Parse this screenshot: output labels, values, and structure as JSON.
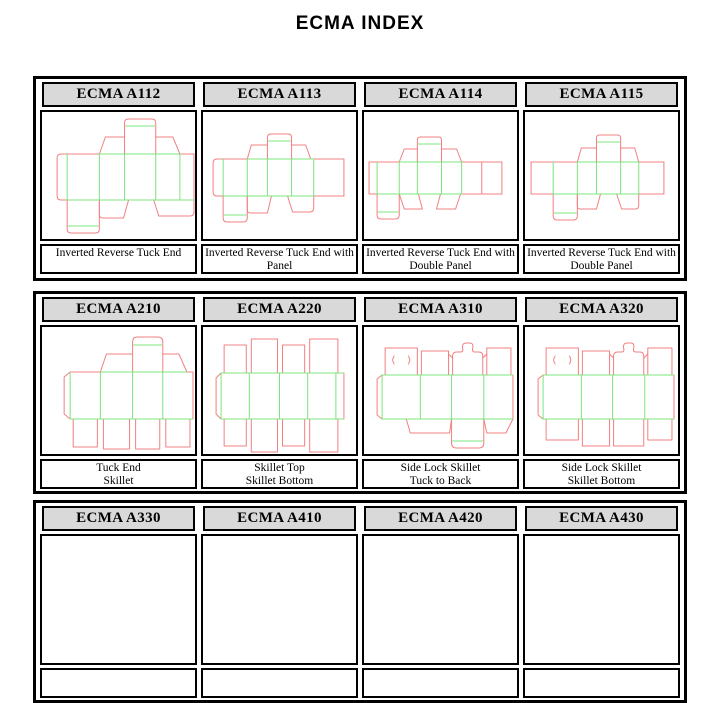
{
  "title": "ECMA INDEX",
  "colors": {
    "cut": "#f28080",
    "crease": "#7ce57c",
    "header_bg": "#d9d9d9"
  },
  "groups": [
    {
      "cards": [
        {
          "code": "ECMA A112",
          "caption1": "Inverted Reverse Tuck End",
          "caption2": "",
          "diagram": {
            "red": [
              "M25,42 H19 Q15,42 15,46 V84 Q15,88 19,88 H25",
              "M25,42 H57",
              "M137,42 H151",
              "M151,42 V88",
              "M82,42 V11 Q82,7 86,7 H109 Q113,7 113,11 V42",
              "M57,42 L63,25 H82",
              "M113,25 H130 L137,42",
              "M25,88 V117 Q25,121 29,121 H53 Q57,121 57,117 V88",
              "M57,88 V103 Q57,106 61,106 H81 L86,88",
              "M111,88 L116,104 H147 Q151,104 151,100 V88"
            ],
            "green": [
              "M57,42 H137",
              "M25,88 H151",
              "M25,42 V88",
              "M57,42 V88",
              "M82,42 V88",
              "M113,42 V88",
              "M137,42 V88",
              "M83,14 H112",
              "M26,114 H56"
            ]
          }
        },
        {
          "code": "ECMA A113",
          "caption1": "Inverted Reverse Tuck End with",
          "caption2": "Panel",
          "diagram": {
            "red": [
              "M20,47 H14 Q10,47 10,51 V80 Q10,84 14,84 H20",
              "M20,47 H44",
              "M110,47 H140",
              "M140,47 V84",
              "M110,84 H140",
              "M64,47 V26 Q64,22 67,22 H85 Q88,22 88,26 V47",
              "M44,47 L48,33 H64",
              "M88,33 H102 L107,47",
              "M20,84 V106 Q20,110 24,110 H40 Q44,110 44,106 V84",
              "M44,84 V98 Q44,101 47,101 H64 L68,84",
              "M84,84 L89,100 H106 Q110,100 110,96 V84"
            ],
            "green": [
              "M44,47 H110",
              "M20,84 H110",
              "M20,47 V84",
              "M44,47 V84",
              "M64,47 V84",
              "M88,47 V84",
              "M110,47 V84",
              "M65,29 H87",
              "M21,103 H43"
            ]
          }
        },
        {
          "code": "ECMA A114",
          "caption1": "Inverted Reverse Tuck End with",
          "caption2": "Double Panel",
          "diagram": {
            "red": [
              "M13,50 H5 V82 H13",
              "M13,50 H35",
              "M97,50 H137",
              "M137,50 V82",
              "M97,82 H137",
              "M117,50 V82",
              "M53,50 V28 Q53,25 56,25 H74 Q77,25 77,28 V50",
              "M35,50 L40,37 H53",
              "M77,37 H92 L97,50",
              "M13,82 V103 Q13,107 17,107 H31 Q35,107 35,103 V82",
              "M35,82 L40,97 H58 L54,82",
              "M96,82 L91,97 H72 L76,82"
            ],
            "green": [
              "M35,50 H97",
              "M13,82 H97",
              "M13,50 V82",
              "M35,50 V82",
              "M53,50 V82",
              "M77,50 V82",
              "M97,50 V82",
              "M54,32 H76",
              "M14,100 H34"
            ]
          }
        },
        {
          "code": "ECMA A115",
          "caption1": "Inverted Reverse Tuck End with",
          "caption2": "Double Panel",
          "diagram": {
            "red": [
              "M28,50 H6 V82 H28",
              "M28,50 H52",
              "M113,50 H138",
              "M138,50 V82",
              "M113,82 H138",
              "M71,50 V26 Q71,23 74,23 H92 Q95,23 95,26 V50",
              "M52,50 L56,36 H71",
              "M95,36 H109 L113,50",
              "M28,82 V104 Q28,108 32,108 H48 Q52,108 52,104 V82",
              "M52,82 V94 Q52,97 55,97 H71 L75,82",
              "M91,82 L96,97 H110 Q113,97 113,93 V82"
            ],
            "green": [
              "M52,50 H113",
              "M28,82 H113",
              "M28,50 V82",
              "M52,50 V82",
              "M71,50 V82",
              "M95,50 V82",
              "M113,50 V82",
              "M72,30 H94",
              "M29,101 H51"
            ]
          }
        }
      ]
    },
    {
      "cards": [
        {
          "code": "ECMA A210",
          "caption1": "Tuck End",
          "caption2": "Skillet",
          "diagram": {
            "red": [
              "M28,45 L22,50 V87 L28,92",
              "M28,45 H58",
              "M144,45 H150",
              "M150,45 V92",
              "M90,45 V15 Q90,10 95,10 H115 Q120,10 120,15 V45",
              "M58,45 L64,27 H90",
              "M120,27 H136 L144,45",
              "M31,92 V120 H55 V92",
              "M61,92 V122 H87 V92",
              "M93,92 V122 H117 V92",
              "M123,92 V120 H147 V92"
            ],
            "green": [
              "M58,45 H144",
              "M28,92 H150",
              "M28,45 V92",
              "M58,45 V92",
              "M90,45 V92",
              "M120,45 V92",
              "M91,18 H119"
            ]
          }
        },
        {
          "code": "ECMA A220",
          "caption1": "Skillet Top",
          "caption2": "Skillet Bottom",
          "diagram": {
            "red": [
              "M18,46 L13,51 V87 L18,92",
              "M140,46 V92",
              "M21,46 V18 H43 V46",
              "M48,46 V12 H74 V46",
              "M79,46 V18 H101 V46",
              "M106,46 V12 H134 V46",
              "M21,92 V119 H43 V92",
              "M48,92 V125 H74 V92",
              "M79,92 V119 H101 V92",
              "M106,92 V125 H134 V92"
            ],
            "green": [
              "M18,46 H140",
              "M18,92 H140",
              "M18,46 V92",
              "M46,46 V92",
              "M76,46 V92",
              "M104,46 V92",
              "M132,46 V92"
            ]
          }
        },
        {
          "code": "ECMA A310",
          "caption1": "Side Lock Skillet",
          "caption2": "Tuck to Back",
          "diagram": {
            "red": [
              "M18,48 L13,52 V88 L18,92",
              "M148,48 V92",
              "M21,48 V21 H53 V48",
              "M30,29 Q27,33 30,37",
              "M44,29 Q47,33 44,37",
              "M57,48 V24 H84 V48",
              "M88,48 V29 Q88,25 92,25 H96 Q99,25 98,21 Q97,16 102,16 H105 Q109,16 108,21 Q107,25 110,25 H114 Q118,25 118,29 V48",
              "M88,31 L84,27",
              "M118,31 L122,27",
              "M122,48 V21 H146 V48",
              "M42,92 L46,106 H85 L87,92",
              "M87,92 V116 Q87,121 92,121 H114 Q119,121 119,116 V92",
              "M119,92 L122,106 H141 L148,92"
            ],
            "green": [
              "M18,48 H148",
              "M18,92 H148",
              "M18,48 V92",
              "M56,48 V92",
              "M87,48 V92",
              "M119,48 V92",
              "M88,114 H118"
            ]
          }
        },
        {
          "code": "ECMA A320",
          "caption1": "Side Lock Skillet",
          "caption2": "Skillet Bottom",
          "diagram": {
            "red": [
              "M18,48 L13,52 V88 L18,92",
              "M148,48 V92",
              "M21,48 V21 H53 V48",
              "M30,29 Q27,33 30,37",
              "M44,29 Q47,33 44,37",
              "M57,48 V24 H84 V48",
              "M88,48 V29 Q88,25 92,25 H96 Q99,25 98,21 Q97,16 102,16 H105 Q109,16 108,21 Q107,25 110,25 H114 Q118,25 118,29 V48",
              "M88,31 L84,27",
              "M118,31 L122,27",
              "M122,48 V21 H146 V48",
              "M21,92 V113 H53 V92",
              "M57,92 V119 H84 V92",
              "M88,92 V119 H118 V92",
              "M122,92 V113 H146 V92"
            ],
            "green": [
              "M18,48 H148",
              "M18,92 H148",
              "M18,48 V92",
              "M56,48 V92",
              "M87,48 V92",
              "M119,48 V92"
            ]
          }
        }
      ]
    },
    {
      "cards": [
        {
          "code": "ECMA A330",
          "caption1": "",
          "caption2": "",
          "diagram": {
            "red": [],
            "green": []
          }
        },
        {
          "code": "ECMA A410",
          "caption1": "",
          "caption2": "",
          "diagram": {
            "red": [],
            "green": []
          }
        },
        {
          "code": "ECMA A420",
          "caption1": "",
          "caption2": "",
          "diagram": {
            "red": [],
            "green": []
          }
        },
        {
          "code": "ECMA A430",
          "caption1": "",
          "caption2": "",
          "diagram": {
            "red": [],
            "green": []
          }
        }
      ]
    }
  ]
}
